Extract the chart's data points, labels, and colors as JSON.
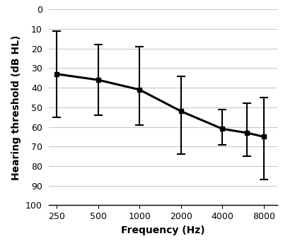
{
  "frequencies": [
    250,
    500,
    1000,
    2000,
    4000,
    6000,
    8000
  ],
  "thresholds": [
    33,
    36,
    41,
    52,
    61,
    63,
    65
  ],
  "err_upper": [
    22,
    18,
    18,
    22,
    8,
    12,
    22
  ],
  "err_lower": [
    22,
    18,
    22,
    18,
    10,
    15,
    20
  ],
  "xlabel": "Frequency (Hz)",
  "ylabel": "Hearing threshold (dB HL)",
  "ylim": [
    100,
    0
  ],
  "yticks": [
    0,
    10,
    20,
    30,
    40,
    50,
    60,
    70,
    80,
    90,
    100
  ],
  "xtick_labels": [
    "250",
    "500",
    "1000",
    "2000",
    "4000",
    "8000"
  ],
  "xtick_positions": [
    250,
    500,
    1000,
    2000,
    4000,
    8000
  ],
  "line_color": "#000000",
  "marker": "s",
  "marker_size": 5,
  "line_width": 2.2,
  "bg_color": "#ffffff",
  "grid_color": "#c8c8c8"
}
